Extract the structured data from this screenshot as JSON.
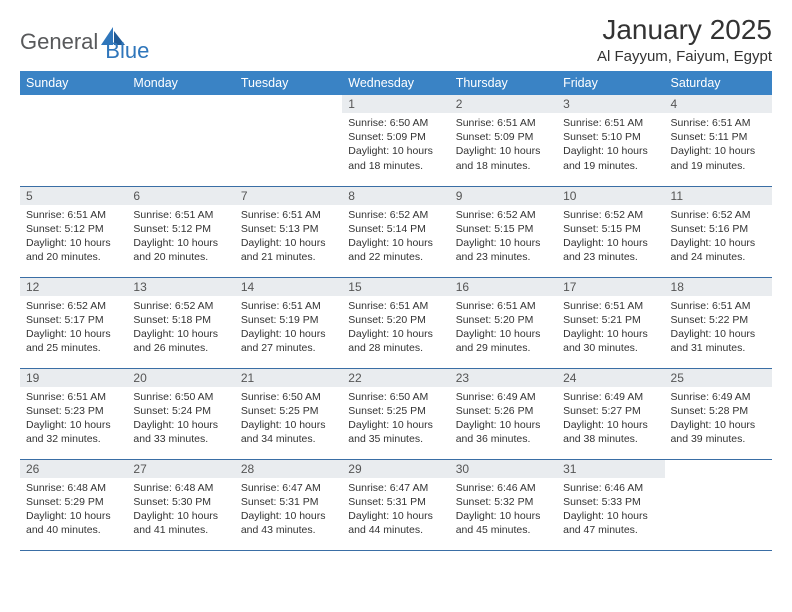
{
  "brand": {
    "general": "General",
    "blue": "Blue"
  },
  "title": "January 2025",
  "location": "Al Fayyum, Faiyum, Egypt",
  "colors": {
    "header_bg": "#3a83c5",
    "header_text": "#ffffff",
    "cell_border": "#3a6ea5",
    "daynum_bg": "#e9ecef",
    "brand_gray": "#58595b",
    "brand_blue": "#2f76bb"
  },
  "weekdays": [
    "Sunday",
    "Monday",
    "Tuesday",
    "Wednesday",
    "Thursday",
    "Friday",
    "Saturday"
  ],
  "weeks": [
    [
      null,
      null,
      null,
      {
        "n": "1",
        "sunrise": "6:50 AM",
        "sunset": "5:09 PM",
        "daylight": "10 hours and 18 minutes."
      },
      {
        "n": "2",
        "sunrise": "6:51 AM",
        "sunset": "5:09 PM",
        "daylight": "10 hours and 18 minutes."
      },
      {
        "n": "3",
        "sunrise": "6:51 AM",
        "sunset": "5:10 PM",
        "daylight": "10 hours and 19 minutes."
      },
      {
        "n": "4",
        "sunrise": "6:51 AM",
        "sunset": "5:11 PM",
        "daylight": "10 hours and 19 minutes."
      }
    ],
    [
      {
        "n": "5",
        "sunrise": "6:51 AM",
        "sunset": "5:12 PM",
        "daylight": "10 hours and 20 minutes."
      },
      {
        "n": "6",
        "sunrise": "6:51 AM",
        "sunset": "5:12 PM",
        "daylight": "10 hours and 20 minutes."
      },
      {
        "n": "7",
        "sunrise": "6:51 AM",
        "sunset": "5:13 PM",
        "daylight": "10 hours and 21 minutes."
      },
      {
        "n": "8",
        "sunrise": "6:52 AM",
        "sunset": "5:14 PM",
        "daylight": "10 hours and 22 minutes."
      },
      {
        "n": "9",
        "sunrise": "6:52 AM",
        "sunset": "5:15 PM",
        "daylight": "10 hours and 23 minutes."
      },
      {
        "n": "10",
        "sunrise": "6:52 AM",
        "sunset": "5:15 PM",
        "daylight": "10 hours and 23 minutes."
      },
      {
        "n": "11",
        "sunrise": "6:52 AM",
        "sunset": "5:16 PM",
        "daylight": "10 hours and 24 minutes."
      }
    ],
    [
      {
        "n": "12",
        "sunrise": "6:52 AM",
        "sunset": "5:17 PM",
        "daylight": "10 hours and 25 minutes."
      },
      {
        "n": "13",
        "sunrise": "6:52 AM",
        "sunset": "5:18 PM",
        "daylight": "10 hours and 26 minutes."
      },
      {
        "n": "14",
        "sunrise": "6:51 AM",
        "sunset": "5:19 PM",
        "daylight": "10 hours and 27 minutes."
      },
      {
        "n": "15",
        "sunrise": "6:51 AM",
        "sunset": "5:20 PM",
        "daylight": "10 hours and 28 minutes."
      },
      {
        "n": "16",
        "sunrise": "6:51 AM",
        "sunset": "5:20 PM",
        "daylight": "10 hours and 29 minutes."
      },
      {
        "n": "17",
        "sunrise": "6:51 AM",
        "sunset": "5:21 PM",
        "daylight": "10 hours and 30 minutes."
      },
      {
        "n": "18",
        "sunrise": "6:51 AM",
        "sunset": "5:22 PM",
        "daylight": "10 hours and 31 minutes."
      }
    ],
    [
      {
        "n": "19",
        "sunrise": "6:51 AM",
        "sunset": "5:23 PM",
        "daylight": "10 hours and 32 minutes."
      },
      {
        "n": "20",
        "sunrise": "6:50 AM",
        "sunset": "5:24 PM",
        "daylight": "10 hours and 33 minutes."
      },
      {
        "n": "21",
        "sunrise": "6:50 AM",
        "sunset": "5:25 PM",
        "daylight": "10 hours and 34 minutes."
      },
      {
        "n": "22",
        "sunrise": "6:50 AM",
        "sunset": "5:25 PM",
        "daylight": "10 hours and 35 minutes."
      },
      {
        "n": "23",
        "sunrise": "6:49 AM",
        "sunset": "5:26 PM",
        "daylight": "10 hours and 36 minutes."
      },
      {
        "n": "24",
        "sunrise": "6:49 AM",
        "sunset": "5:27 PM",
        "daylight": "10 hours and 38 minutes."
      },
      {
        "n": "25",
        "sunrise": "6:49 AM",
        "sunset": "5:28 PM",
        "daylight": "10 hours and 39 minutes."
      }
    ],
    [
      {
        "n": "26",
        "sunrise": "6:48 AM",
        "sunset": "5:29 PM",
        "daylight": "10 hours and 40 minutes."
      },
      {
        "n": "27",
        "sunrise": "6:48 AM",
        "sunset": "5:30 PM",
        "daylight": "10 hours and 41 minutes."
      },
      {
        "n": "28",
        "sunrise": "6:47 AM",
        "sunset": "5:31 PM",
        "daylight": "10 hours and 43 minutes."
      },
      {
        "n": "29",
        "sunrise": "6:47 AM",
        "sunset": "5:31 PM",
        "daylight": "10 hours and 44 minutes."
      },
      {
        "n": "30",
        "sunrise": "6:46 AM",
        "sunset": "5:32 PM",
        "daylight": "10 hours and 45 minutes."
      },
      {
        "n": "31",
        "sunrise": "6:46 AM",
        "sunset": "5:33 PM",
        "daylight": "10 hours and 47 minutes."
      },
      null
    ]
  ],
  "labels": {
    "sunrise": "Sunrise:",
    "sunset": "Sunset:",
    "daylight": "Daylight:"
  }
}
